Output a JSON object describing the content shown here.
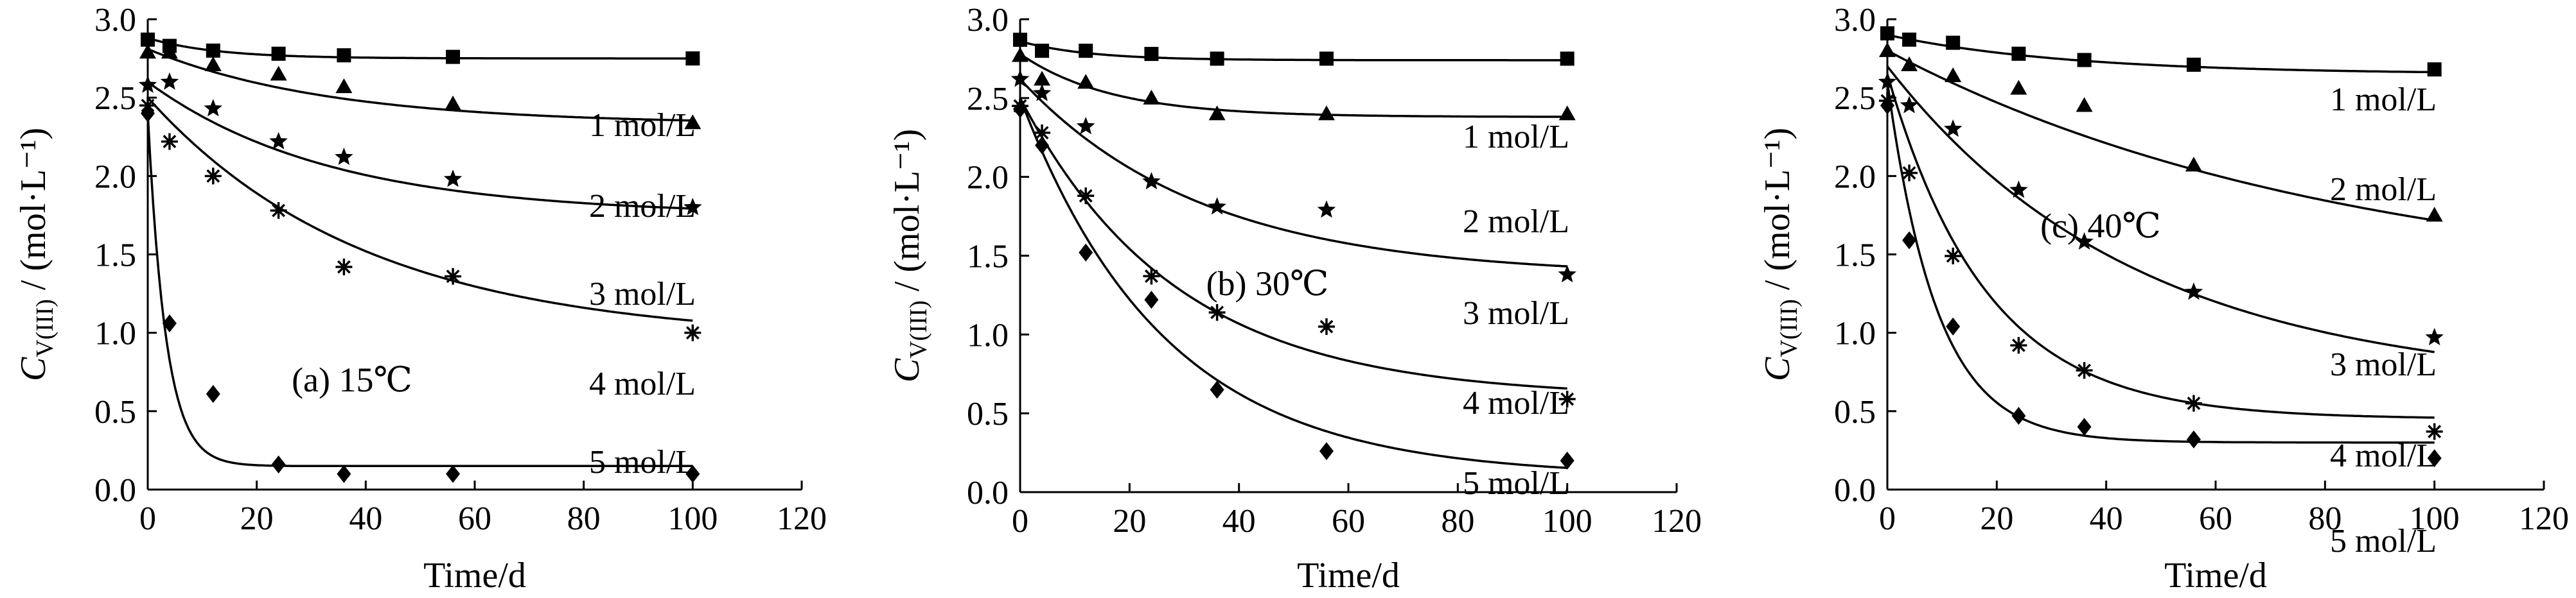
{
  "chart_data": [
    {
      "type": "scatter",
      "panel_label": "(a) 15℃",
      "xlabel": "Time/d",
      "ylabel_main": "C",
      "ylabel_sub": "V(III)",
      "ylabel_unit": " / (mol·L⁻¹)",
      "xlim": [
        0,
        120
      ],
      "ylim": [
        0,
        3.0
      ],
      "xticks": [
        0,
        20,
        40,
        60,
        80,
        100,
        120
      ],
      "yticks": [
        "0.0",
        "0.5",
        "1.0",
        "1.5",
        "2.0",
        "2.5",
        "3.0"
      ],
      "series": [
        {
          "name": "1 mol/L",
          "marker": "square",
          "x": [
            0,
            4,
            12,
            24,
            36,
            56,
            100
          ],
          "y": [
            2.87,
            2.83,
            2.8,
            2.78,
            2.77,
            2.76,
            2.75
          ],
          "fit": {
            "a": 0.13,
            "b": 2.75,
            "k": 0.08
          }
        },
        {
          "name": "2 mol/L",
          "marker": "triangle",
          "x": [
            0,
            4,
            12,
            24,
            36,
            56,
            100
          ],
          "y": [
            2.79,
            2.79,
            2.71,
            2.65,
            2.57,
            2.46,
            2.34
          ],
          "fit": {
            "a": 0.48,
            "b": 2.33,
            "k": 0.03
          }
        },
        {
          "name": "3 mol/L",
          "marker": "star",
          "x": [
            0,
            4,
            12,
            24,
            36,
            56,
            100
          ],
          "y": [
            2.58,
            2.6,
            2.43,
            2.22,
            2.12,
            1.98,
            1.8
          ],
          "fit": {
            "a": 0.85,
            "b": 1.75,
            "k": 0.03
          }
        },
        {
          "name": "4 mol/L",
          "marker": "asterisk",
          "x": [
            0,
            4,
            12,
            24,
            36,
            56,
            100
          ],
          "y": [
            2.45,
            2.22,
            2.0,
            1.78,
            1.42,
            1.36,
            1.0
          ],
          "fit": {
            "a": 1.55,
            "b": 0.95,
            "k": 0.025
          }
        },
        {
          "name": "5 mol/L",
          "marker": "diamond",
          "x": [
            0,
            4,
            12,
            24,
            36,
            56,
            100
          ],
          "y": [
            2.4,
            1.06,
            0.61,
            0.16,
            0.1,
            0.1,
            0.1
          ],
          "fit": {
            "a": 2.25,
            "b": 0.15,
            "k": 0.3
          }
        }
      ]
    },
    {
      "type": "scatter",
      "panel_label": "(b) 30℃",
      "xlabel": "Time/d",
      "ylabel_main": "C",
      "ylabel_sub": "V(III)",
      "ylabel_unit": " / (mol·L⁻¹)",
      "xlim": [
        0,
        120
      ],
      "ylim": [
        0,
        3.0
      ],
      "xticks": [
        0,
        20,
        40,
        60,
        80,
        100,
        120
      ],
      "yticks": [
        "0.0",
        "0.5",
        "1.0",
        "1.5",
        "2.0",
        "2.5",
        "3.0"
      ],
      "series": [
        {
          "name": "1 mol/L",
          "marker": "square",
          "x": [
            0,
            4,
            12,
            24,
            36,
            56,
            100
          ],
          "y": [
            2.87,
            2.8,
            2.8,
            2.78,
            2.75,
            2.75,
            2.75
          ],
          "fit": {
            "a": 0.12,
            "b": 2.74,
            "k": 0.08
          }
        },
        {
          "name": "2 mol/L",
          "marker": "triangle",
          "x": [
            0,
            4,
            12,
            24,
            36,
            56,
            100
          ],
          "y": [
            2.77,
            2.62,
            2.6,
            2.5,
            2.4,
            2.4,
            2.4
          ],
          "fit": {
            "a": 0.4,
            "b": 2.38,
            "k": 0.06
          }
        },
        {
          "name": "3 mol/L",
          "marker": "star",
          "x": [
            0,
            4,
            12,
            24,
            36,
            56,
            100
          ],
          "y": [
            2.62,
            2.53,
            2.32,
            1.97,
            1.81,
            1.79,
            1.38
          ],
          "fit": {
            "a": 1.25,
            "b": 1.37,
            "k": 0.03
          }
        },
        {
          "name": "4 mol/L",
          "marker": "asterisk",
          "x": [
            0,
            4,
            12,
            24,
            36,
            56,
            100
          ],
          "y": [
            2.45,
            2.28,
            1.88,
            1.37,
            1.14,
            1.05,
            0.59
          ],
          "fit": {
            "a": 1.9,
            "b": 0.6,
            "k": 0.035
          }
        },
        {
          "name": "5 mol/L",
          "marker": "diamond",
          "x": [
            0,
            4,
            12,
            24,
            36,
            56,
            100
          ],
          "y": [
            2.43,
            2.2,
            1.52,
            1.22,
            0.65,
            0.26,
            0.2
          ],
          "fit": {
            "a": 2.4,
            "b": 0.1,
            "k": 0.038
          }
        }
      ]
    },
    {
      "type": "scatter",
      "panel_label": "(c) 40℃",
      "xlabel": "Time/d",
      "ylabel_main": "C",
      "ylabel_sub": "V(III)",
      "ylabel_unit": " / (mol·L⁻¹)",
      "xlim": [
        0,
        120
      ],
      "ylim": [
        0,
        3.0
      ],
      "xticks": [
        0,
        20,
        40,
        60,
        80,
        100,
        120
      ],
      "yticks": [
        "0.0",
        "0.5",
        "1.0",
        "1.5",
        "2.0",
        "2.5",
        "3.0"
      ],
      "series": [
        {
          "name": "1 mol/L",
          "marker": "square",
          "x": [
            0,
            4,
            12,
            24,
            36,
            56,
            100
          ],
          "y": [
            2.91,
            2.87,
            2.85,
            2.78,
            2.74,
            2.71,
            2.68
          ],
          "fit": {
            "a": 0.25,
            "b": 2.65,
            "k": 0.03
          }
        },
        {
          "name": "2 mol/L",
          "marker": "triangle",
          "x": [
            0,
            4,
            12,
            24,
            36,
            56,
            100
          ],
          "y": [
            2.8,
            2.71,
            2.64,
            2.56,
            2.45,
            2.07,
            1.75
          ],
          "fit": {
            "a": 1.55,
            "b": 1.25,
            "k": 0.012
          }
        },
        {
          "name": "3 mol/L",
          "marker": "star",
          "x": [
            0,
            4,
            12,
            24,
            36,
            56,
            100
          ],
          "y": [
            2.6,
            2.45,
            2.3,
            1.91,
            1.58,
            1.26,
            0.97
          ],
          "fit": {
            "a": 2.05,
            "b": 0.65,
            "k": 0.022
          }
        },
        {
          "name": "4 mol/L",
          "marker": "asterisk",
          "x": [
            0,
            4,
            12,
            24,
            36,
            56,
            100
          ],
          "y": [
            2.48,
            2.02,
            1.49,
            0.92,
            0.76,
            0.55,
            0.37
          ],
          "fit": {
            "a": 2.2,
            "b": 0.45,
            "k": 0.055
          }
        },
        {
          "name": "5 mol/L",
          "marker": "diamond",
          "x": [
            0,
            4,
            12,
            24,
            36,
            56,
            100
          ],
          "y": [
            2.45,
            1.59,
            1.04,
            0.47,
            0.4,
            0.32,
            0.2
          ],
          "fit": {
            "a": 2.3,
            "b": 0.3,
            "k": 0.11
          }
        }
      ]
    }
  ]
}
